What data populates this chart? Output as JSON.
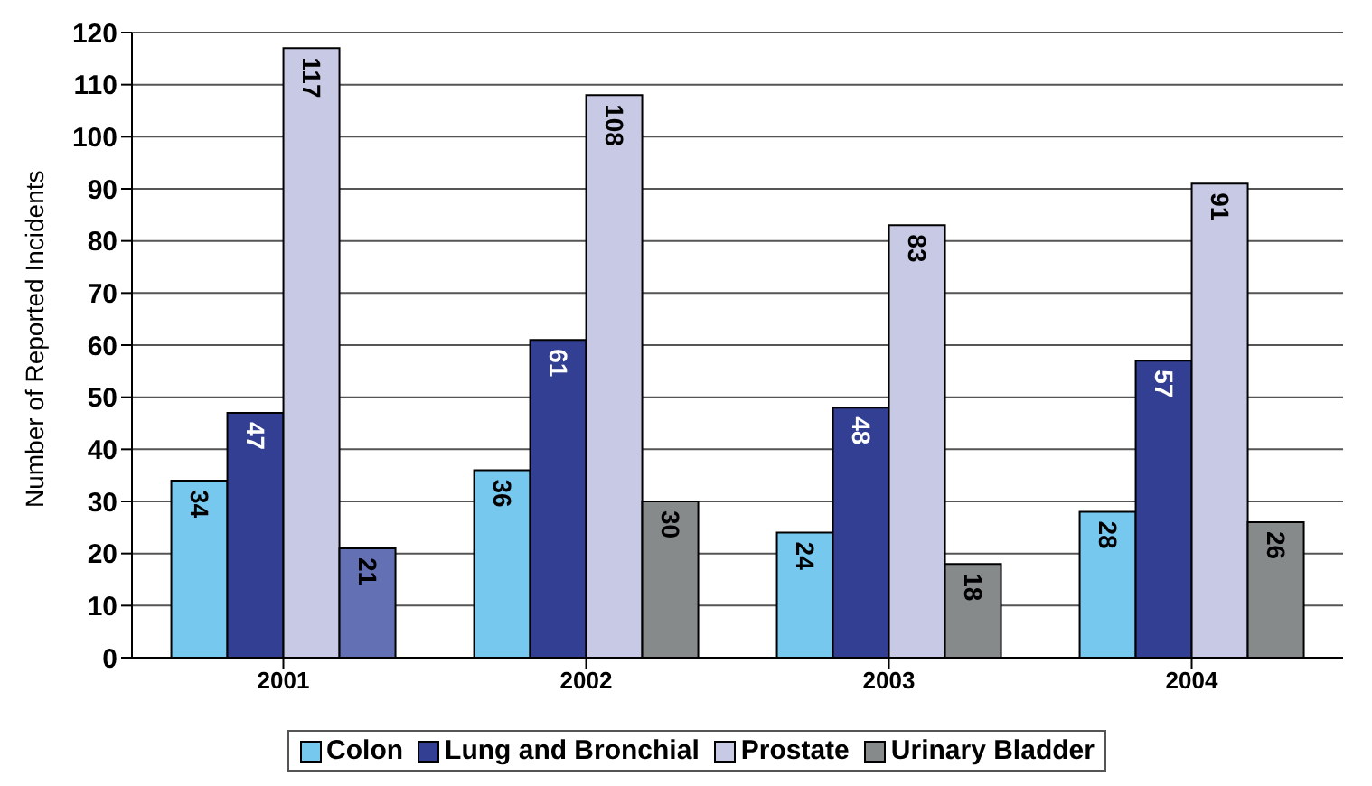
{
  "chart_data": {
    "type": "bar",
    "ylabel": "Number of Reported Incidents",
    "categories": [
      "2001",
      "2002",
      "2003",
      "2004"
    ],
    "series": [
      {
        "name": "Colon",
        "color": "#77c8ee",
        "values": [
          34,
          36,
          24,
          28
        ]
      },
      {
        "name": "Lung and Bronchial",
        "color": "#323f92",
        "values": [
          47,
          61,
          48,
          57
        ]
      },
      {
        "name": "Prostate",
        "color": "#c8c9e5",
        "values": [
          117,
          108,
          83,
          91
        ]
      },
      {
        "name": "Urinary Bladder",
        "color": "#868a8b",
        "colors": [
          "#6470b4",
          "#868a8b",
          "#868a8b",
          "#868a8b"
        ],
        "values": [
          21,
          30,
          18,
          26
        ]
      }
    ],
    "ylim": [
      0,
      120
    ],
    "yticks": [
      0,
      10,
      20,
      30,
      40,
      50,
      60,
      70,
      80,
      90,
      100,
      110,
      120
    ],
    "grid": "y",
    "legend": "bottom",
    "data_labels": true
  }
}
